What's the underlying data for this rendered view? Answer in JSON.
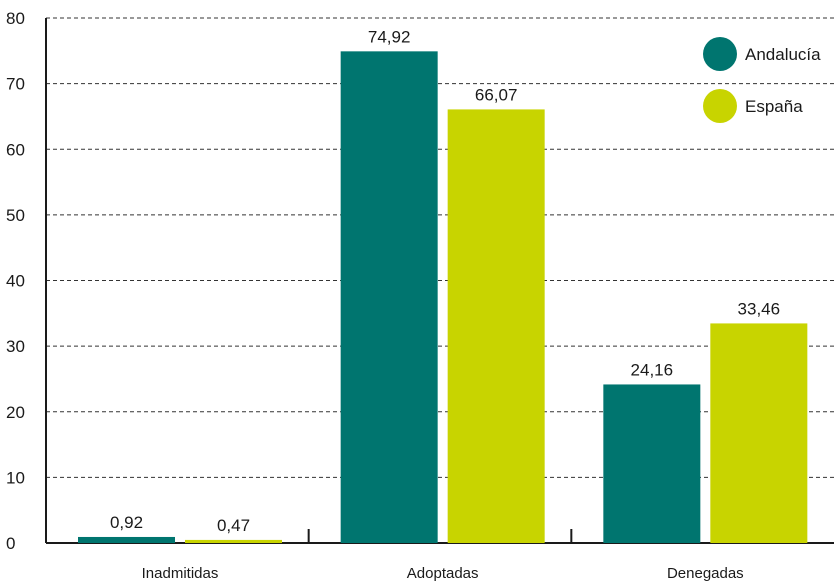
{
  "chart_data": {
    "type": "bar",
    "categories": [
      "Inadmitidas",
      "Adoptadas",
      "Denegadas"
    ],
    "series": [
      {
        "name": "Andalucía",
        "color": "#00756f",
        "values": [
          0.92,
          74.92,
          24.16
        ],
        "labels": [
          "0,92",
          "74,92",
          "24,16"
        ]
      },
      {
        "name": "España",
        "color": "#c8d400",
        "values": [
          0.47,
          66.07,
          33.46
        ],
        "labels": [
          "0,47",
          "66,07",
          "33,46"
        ]
      }
    ],
    "yticks": [
      0,
      10,
      20,
      30,
      40,
      50,
      60,
      70,
      80
    ],
    "ylim": [
      0,
      80
    ],
    "grid": true,
    "legend": "top-right",
    "title": "",
    "xlabel": "",
    "ylabel": ""
  }
}
